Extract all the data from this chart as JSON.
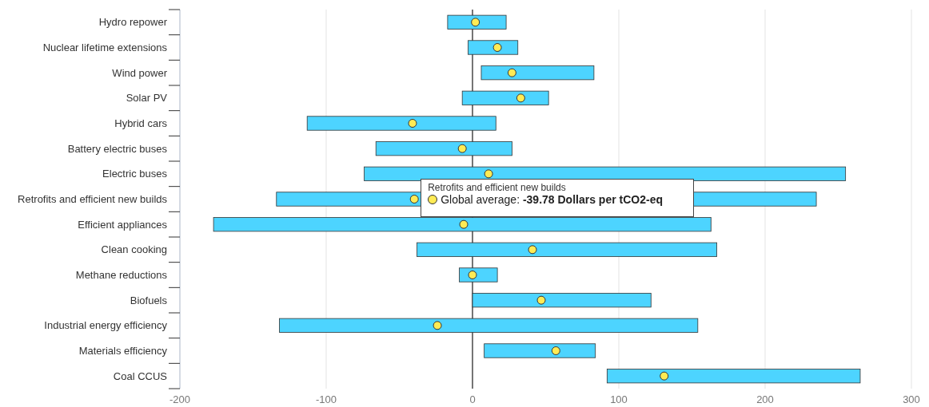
{
  "chart_data": {
    "type": "bar",
    "orientation": "horizontal",
    "categories": [
      "Hydro repower",
      "Nuclear lifetime extensions",
      "Wind power",
      "Solar PV",
      "Hybrid cars",
      "Battery electric buses",
      "Electric buses",
      "Retrofits and efficient new builds",
      "Efficient appliances",
      "Clean cooking",
      "Methane reductions",
      "Biofuels",
      "Industrial energy efficiency",
      "Materials efficiency",
      "Coal CCUS"
    ],
    "series": [
      {
        "color": "#4dd4ff",
        "base": [
          -17,
          -3,
          6,
          -7,
          -113,
          -66,
          -74,
          -134,
          -177,
          -38,
          -9,
          0,
          -132,
          8,
          92
        ],
        "values": [
          40,
          34,
          77,
          59,
          129,
          93,
          329,
          369,
          340,
          205,
          26,
          122,
          286,
          76,
          173
        ]
      },
      {
        "type": "scatter",
        "color": "#ffeb55",
        "marker": "circle",
        "x": [
          "Hydro repower",
          "Nuclear lifetime extensions",
          "Wind power",
          "Solar PV",
          "Hybrid cars",
          "Battery electric buses",
          "Electric buses",
          "Retrofits and efficient new builds",
          "Efficient appliances",
          "Clean cooking",
          "Methane reductions",
          "Biofuels",
          "Industrial energy efficiency",
          "Materials efficiency",
          "Coal CCUS"
        ],
        "values": [
          2,
          17,
          27,
          33,
          -41,
          -7,
          11,
          -39.78,
          -6,
          41,
          0,
          47,
          -24,
          57,
          131
        ]
      }
    ],
    "xlim": [
      -200,
      300
    ],
    "xticks": [
      -200,
      -100,
      0,
      100,
      200,
      300
    ],
    "grid": "x",
    "ref_lines": [
      {
        "axis": "x",
        "value": 0,
        "color": "#222222"
      }
    ],
    "annotations": [
      {
        "text": "Retrofits and efficient new builds\nGlobal average: -39.78 Dollars per tCO2-eq",
        "x": -39.78,
        "y": "Retrofits and efficient new builds"
      }
    ]
  }
}
